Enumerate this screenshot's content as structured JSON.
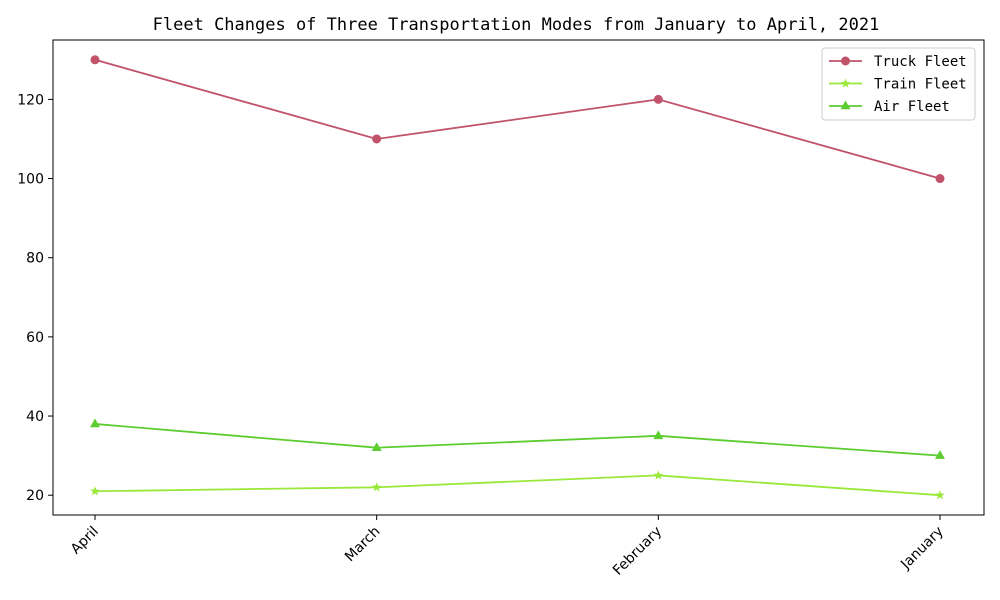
{
  "chart_data": {
    "type": "line",
    "title": "Fleet Changes of Three Transportation Modes from January to April, 2021",
    "xlabel": "",
    "ylabel": "",
    "categories": [
      "April",
      "March",
      "February",
      "January"
    ],
    "ylim": [
      15,
      135
    ],
    "yticks": [
      20,
      40,
      60,
      80,
      100,
      120
    ],
    "grid": false,
    "legend_position": "top-right",
    "series": [
      {
        "name": "Truck Fleet",
        "values": [
          130,
          110,
          120,
          100
        ],
        "color": "#c0526a",
        "marker": "circle"
      },
      {
        "name": "Train Fleet",
        "values": [
          21,
          22,
          25,
          20
        ],
        "color": "#99e83a",
        "marker": "star"
      },
      {
        "name": "Air Fleet",
        "values": [
          38,
          32,
          35,
          30
        ],
        "color": "#5dcc2f",
        "marker": "triangle"
      }
    ]
  }
}
